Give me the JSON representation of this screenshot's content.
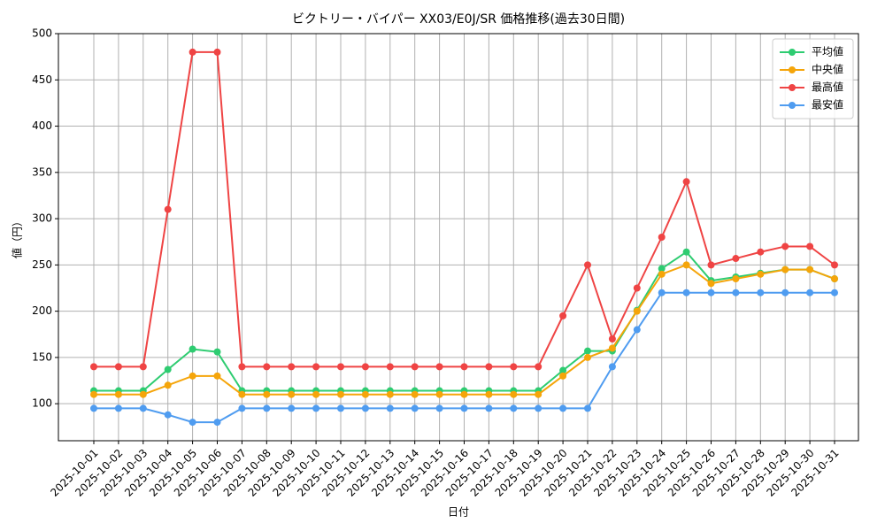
{
  "chart_data": {
    "type": "line",
    "title": "ビクトリー・バイパー XX03/E0J/SR 価格推移(過去30日間)",
    "x_label": "日付",
    "y_label": "値（円）",
    "categories": [
      "2025-10-01",
      "2025-10-02",
      "2025-10-03",
      "2025-10-04",
      "2025-10-05",
      "2025-10-06",
      "2025-10-07",
      "2025-10-08",
      "2025-10-09",
      "2025-10-10",
      "2025-10-11",
      "2025-10-12",
      "2025-10-13",
      "2025-10-14",
      "2025-10-15",
      "2025-10-16",
      "2025-10-17",
      "2025-10-18",
      "2025-10-19",
      "2025-10-20",
      "2025-10-21",
      "2025-10-22",
      "2025-10-23",
      "2025-10-24",
      "2025-10-25",
      "2025-10-26",
      "2025-10-27",
      "2025-10-28",
      "2025-10-29",
      "2025-10-30",
      "2025-10-31"
    ],
    "series": [
      {
        "name": "平均値",
        "color": "#2ecc71",
        "values": [
          114,
          114,
          114,
          137,
          159,
          156,
          114,
          114,
          114,
          114,
          114,
          114,
          114,
          114,
          114,
          114,
          114,
          114,
          114,
          136,
          157,
          157,
          201,
          246,
          264,
          233,
          237,
          241,
          245,
          245,
          235
        ]
      },
      {
        "name": "中央値",
        "color": "#f5a50a",
        "values": [
          110,
          110,
          110,
          120,
          130,
          130,
          110,
          110,
          110,
          110,
          110,
          110,
          110,
          110,
          110,
          110,
          110,
          110,
          110,
          130,
          150,
          160,
          200,
          240,
          250,
          230,
          235,
          240,
          245,
          245,
          235
        ]
      },
      {
        "name": "最高値",
        "color": "#ef4444",
        "values": [
          140,
          140,
          140,
          310,
          480,
          480,
          140,
          140,
          140,
          140,
          140,
          140,
          140,
          140,
          140,
          140,
          140,
          140,
          140,
          195,
          250,
          170,
          225,
          280,
          340,
          250,
          257,
          264,
          270,
          270,
          250
        ]
      },
      {
        "name": "最安値",
        "color": "#4f9cf0",
        "values": [
          95,
          95,
          95,
          88,
          80,
          80,
          95,
          95,
          95,
          95,
          95,
          95,
          95,
          95,
          95,
          95,
          95,
          95,
          95,
          95,
          95,
          140,
          180,
          220,
          220,
          220,
          220,
          220,
          220,
          220,
          220
        ]
      }
    ],
    "ylim": [
      60,
      500
    ],
    "yticks": [
      100,
      150,
      200,
      250,
      300,
      350,
      400,
      450,
      500
    ],
    "grid": true,
    "legend": "upper-right"
  }
}
